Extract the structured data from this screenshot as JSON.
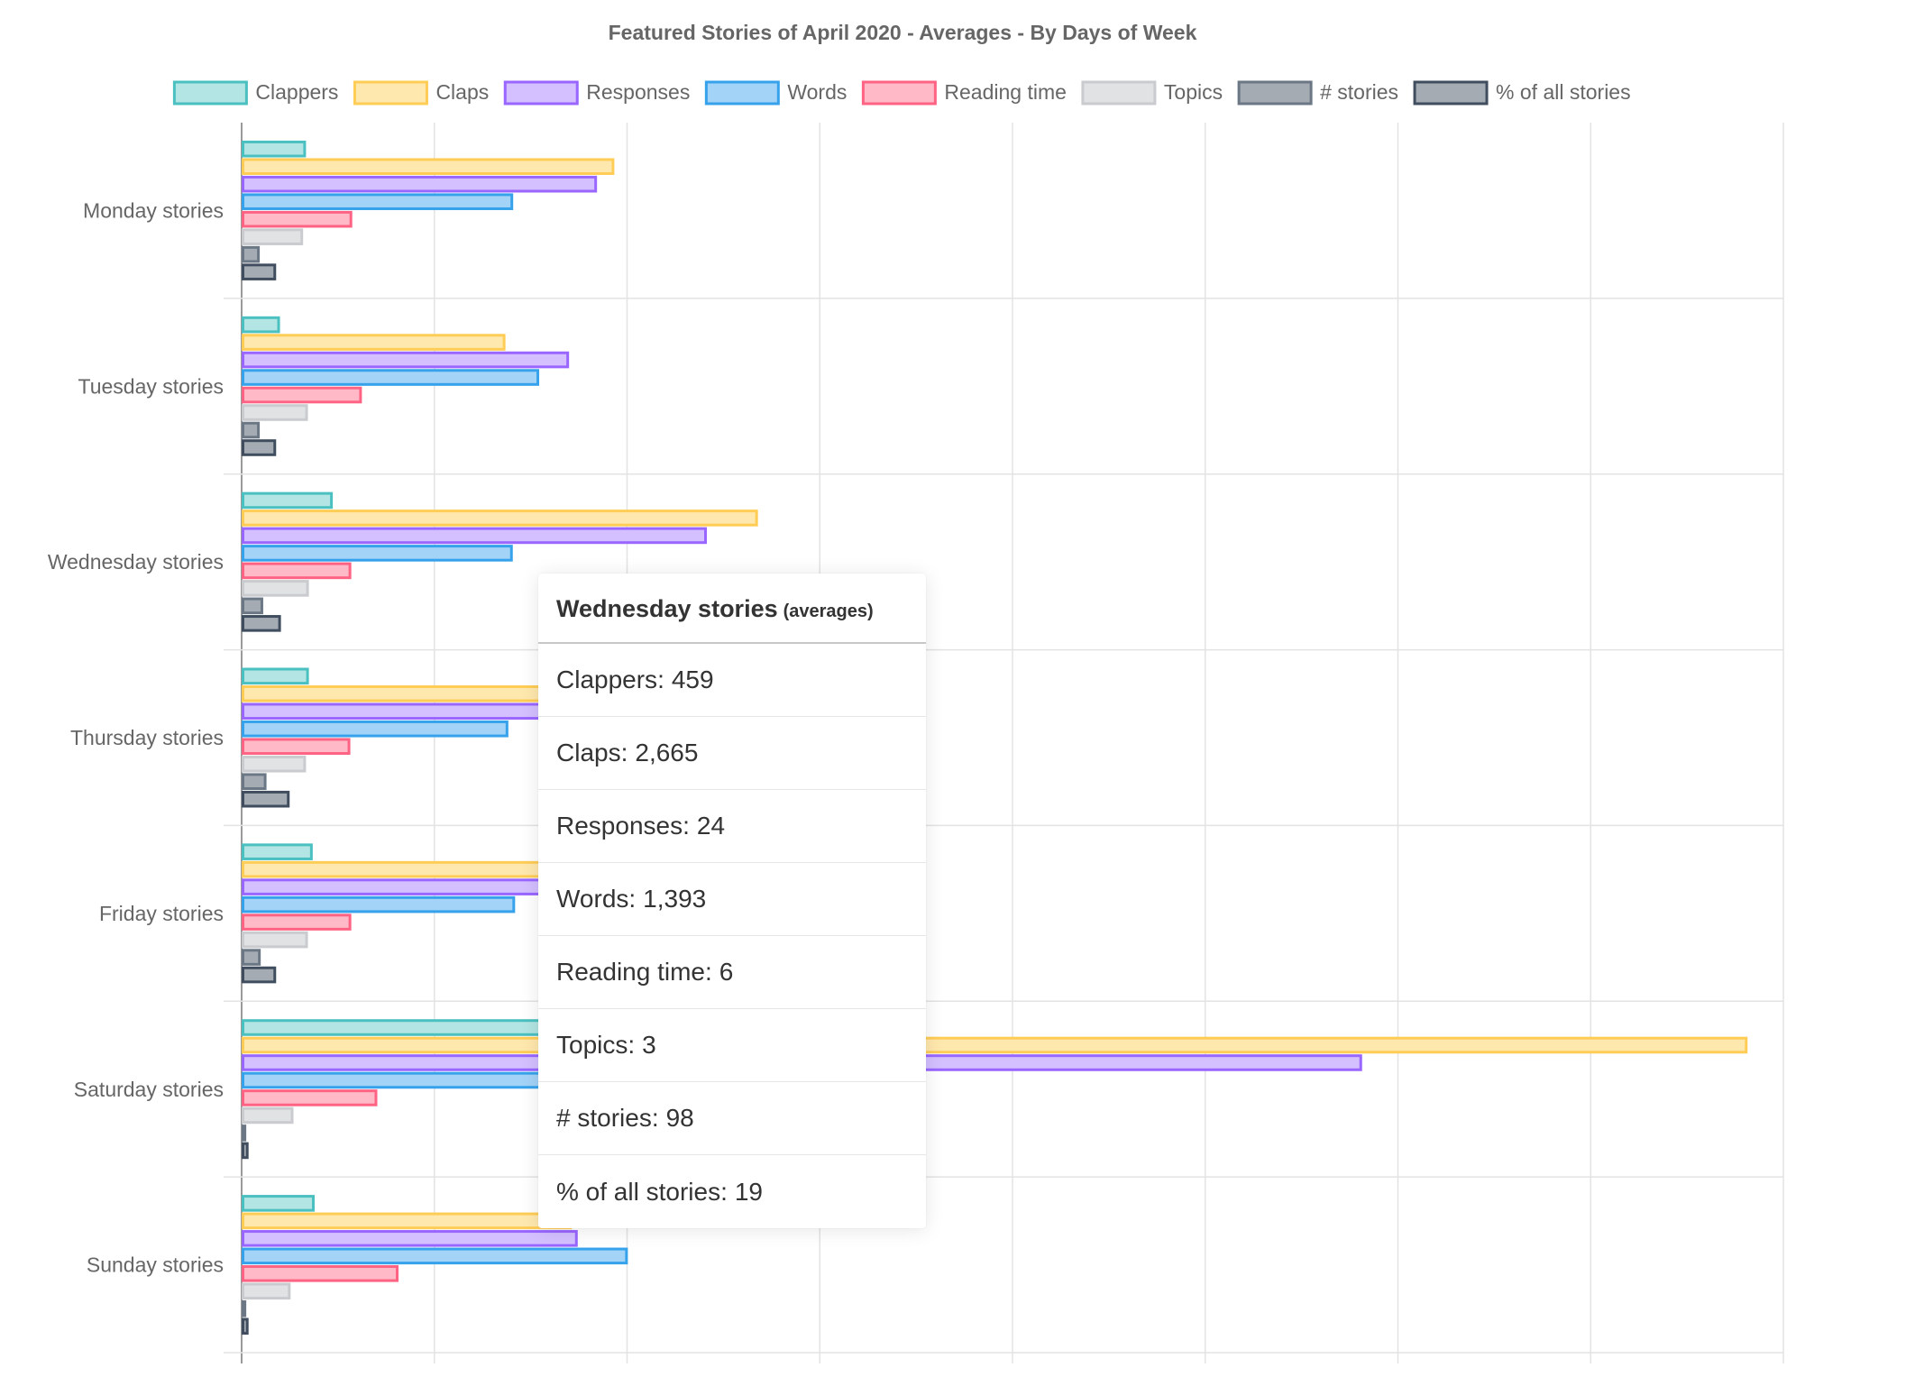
{
  "chart_data": {
    "type": "bar",
    "orientation": "horizontal",
    "title": "Featured Stories of April 2020 - Averages - By Days of Week",
    "categories": [
      "Monday stories",
      "Tuesday stories",
      "Wednesday stories",
      "Thursday stories",
      "Friday stories",
      "Saturday stories",
      "Sunday stories"
    ],
    "series": [
      {
        "name": "Clappers",
        "fill": "#b2e5e3",
        "stroke": "#4bc0c0",
        "values": [
          320,
          185,
          459,
          335,
          355,
          1800,
          365
        ]
      },
      {
        "name": "Claps",
        "fill": "#ffe8ad",
        "stroke": "#ffcd56",
        "values": [
          1920,
          1355,
          2665,
          1700,
          1750,
          7800,
          1700
        ]
      },
      {
        "name": "Responses",
        "fill": "#d4bfff",
        "stroke": "#9966ff",
        "values": [
          1830,
          1685,
          2400,
          1700,
          1750,
          5800,
          1730
        ]
      },
      {
        "name": "Words",
        "fill": "#a3d3f7",
        "stroke": "#36a2eb",
        "values": [
          1395,
          1530,
          1393,
          1370,
          1405,
          1700,
          1990
        ]
      },
      {
        "name": "Reading time",
        "fill": "#ffb9c7",
        "stroke": "#ff6384",
        "values": [
          560,
          610,
          555,
          550,
          555,
          690,
          800
        ]
      },
      {
        "name": "Topics",
        "fill": "#e1e2e4",
        "stroke": "#c9cbcf",
        "values": [
          305,
          330,
          335,
          320,
          330,
          255,
          240
        ]
      },
      {
        "name": "# stories",
        "fill": "#a4abb3",
        "stroke": "#6b7785",
        "values": [
          80,
          80,
          98,
          115,
          85,
          10,
          10
        ]
      },
      {
        "name": "% of all stories",
        "fill": "#a4abb3",
        "stroke": "#3f4d5e",
        "values": [
          165,
          165,
          190,
          235,
          165,
          22,
          22
        ]
      }
    ],
    "xlim": [
      0,
      8000
    ],
    "x_ticks": [
      0,
      1000,
      2000,
      3000,
      4000,
      5000,
      6000,
      7000,
      8000
    ],
    "x_tick_labels_visible": false,
    "grid": true,
    "legend_position": "top"
  },
  "tooltip": {
    "title": "Wednesday stories",
    "subtitle": "(averages)",
    "rows": [
      {
        "label": "Clappers",
        "value": "459"
      },
      {
        "label": "Claps",
        "value": "2,665"
      },
      {
        "label": "Responses",
        "value": "24"
      },
      {
        "label": "Words",
        "value": "1,393"
      },
      {
        "label": "Reading time",
        "value": "6"
      },
      {
        "label": "Topics",
        "value": "3"
      },
      {
        "label": "# stories",
        "value": "98"
      },
      {
        "label": "% of all stories",
        "value": "19"
      }
    ]
  }
}
